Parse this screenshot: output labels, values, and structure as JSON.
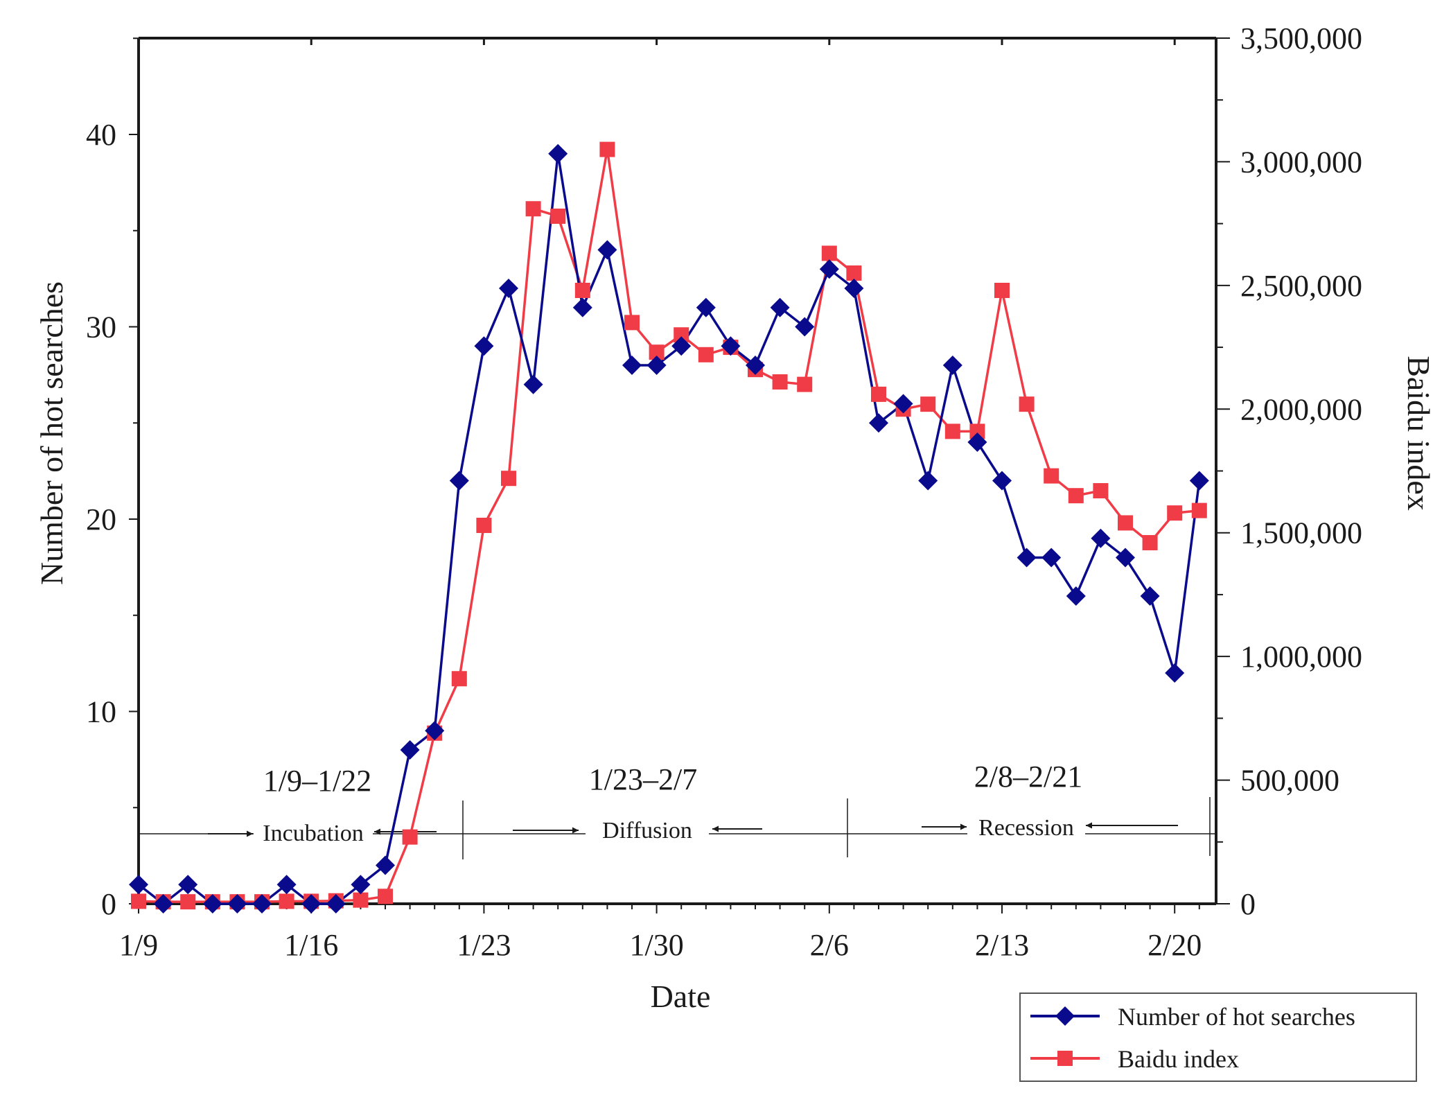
{
  "chart_data": {
    "type": "line",
    "x": [
      "1/9",
      "1/10",
      "1/11",
      "1/12",
      "1/13",
      "1/14",
      "1/15",
      "1/16",
      "1/17",
      "1/18",
      "1/19",
      "1/20",
      "1/21",
      "1/22",
      "1/23",
      "1/24",
      "1/25",
      "1/26",
      "1/27",
      "1/28",
      "1/29",
      "1/30",
      "1/31",
      "2/1",
      "2/2",
      "2/3",
      "2/4",
      "2/5",
      "2/6",
      "2/7",
      "2/8",
      "2/9",
      "2/10",
      "2/11",
      "2/12",
      "2/13",
      "2/14",
      "2/15",
      "2/16",
      "2/17",
      "2/18",
      "2/19",
      "2/20",
      "2/21"
    ],
    "series": [
      {
        "name": "Number of hot searches",
        "axis": "left",
        "color": "#0a0a8c",
        "marker": "diamond",
        "values": [
          1,
          0,
          1,
          0,
          0,
          0,
          1,
          0,
          0,
          1,
          2,
          8,
          9,
          22,
          29,
          32,
          27,
          39,
          31,
          34,
          28,
          28,
          29,
          31,
          29,
          28,
          31,
          30,
          33,
          32,
          25,
          26,
          22,
          28,
          24,
          22,
          18,
          18,
          16,
          19,
          18,
          16,
          12,
          22
        ]
      },
      {
        "name": "Baidu index",
        "axis": "right",
        "color": "#f03c46",
        "marker": "square",
        "values": [
          10000,
          8000,
          8000,
          8000,
          8000,
          8000,
          10000,
          10000,
          12000,
          15000,
          30000,
          270000,
          690000,
          910000,
          1530000,
          1720000,
          2810000,
          2780000,
          2480000,
          3050000,
          2350000,
          2230000,
          2300000,
          2220000,
          2250000,
          2160000,
          2110000,
          2100000,
          2630000,
          2550000,
          2060000,
          2000000,
          2020000,
          1910000,
          1910000,
          2480000,
          2020000,
          1730000,
          1650000,
          1670000,
          1540000,
          1460000,
          1580000,
          1590000
        ]
      }
    ],
    "xlabel": "Date",
    "ylabel_left": "Number of hot searches",
    "ylabel_right": "Baidu index",
    "x_ticks": [
      "1/9",
      "1/16",
      "1/23",
      "1/30",
      "2/6",
      "2/13",
      "2/20"
    ],
    "y_left_ticks": [
      "0",
      "10",
      "20",
      "30",
      "40"
    ],
    "y_left_range": [
      0,
      45
    ],
    "y_right_ticks": [
      "0",
      "500,000",
      "1,000,000",
      "1,500,000",
      "2,000,000",
      "2,500,000",
      "3,000,000",
      "3,500,000"
    ],
    "y_right_range": [
      0,
      3500000
    ],
    "grid": false,
    "legend_position": "bottom-right",
    "phases": [
      {
        "range": "1/9–1/22",
        "name": "Incubation"
      },
      {
        "range": "1/23–2/7",
        "name": "Diffusion"
      },
      {
        "range": "2/8–2/21",
        "name": "Recession"
      }
    ],
    "legend": [
      {
        "label": "Number of hot searches"
      },
      {
        "label": "Baidu index"
      }
    ]
  }
}
